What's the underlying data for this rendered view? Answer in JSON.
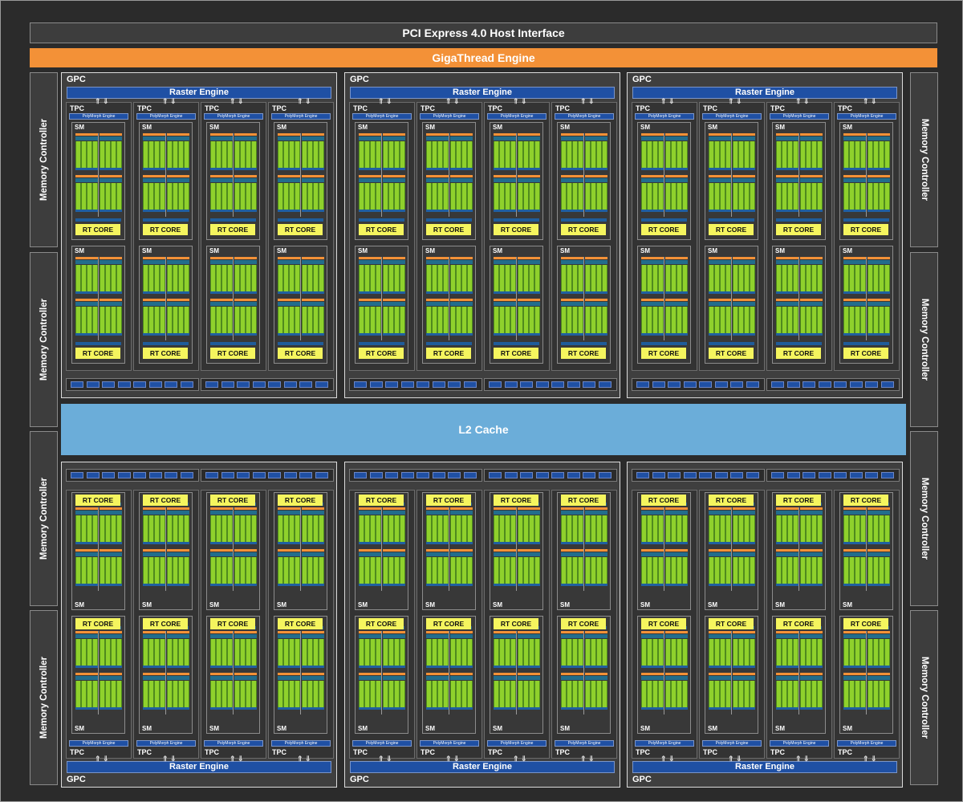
{
  "header": {
    "pcie": "PCI Express 4.0 Host Interface",
    "gigathread": "GigaThread Engine"
  },
  "memory_controller_label": "Memory Controller",
  "l2_cache": "L2 Cache",
  "gpc": {
    "label": "GPC",
    "raster_engine": "Raster Engine",
    "tpc_label": "TPC",
    "polymorph": "PolyMorph Engine",
    "sm_label": "SM",
    "rt_core": "RT CORE"
  },
  "colors": {
    "gigathread": "#f39137",
    "l2": "#6badd9",
    "raster": "#1f50a4",
    "rt_core": "#f5f55e",
    "cuda_core": "#8fd12c"
  }
}
